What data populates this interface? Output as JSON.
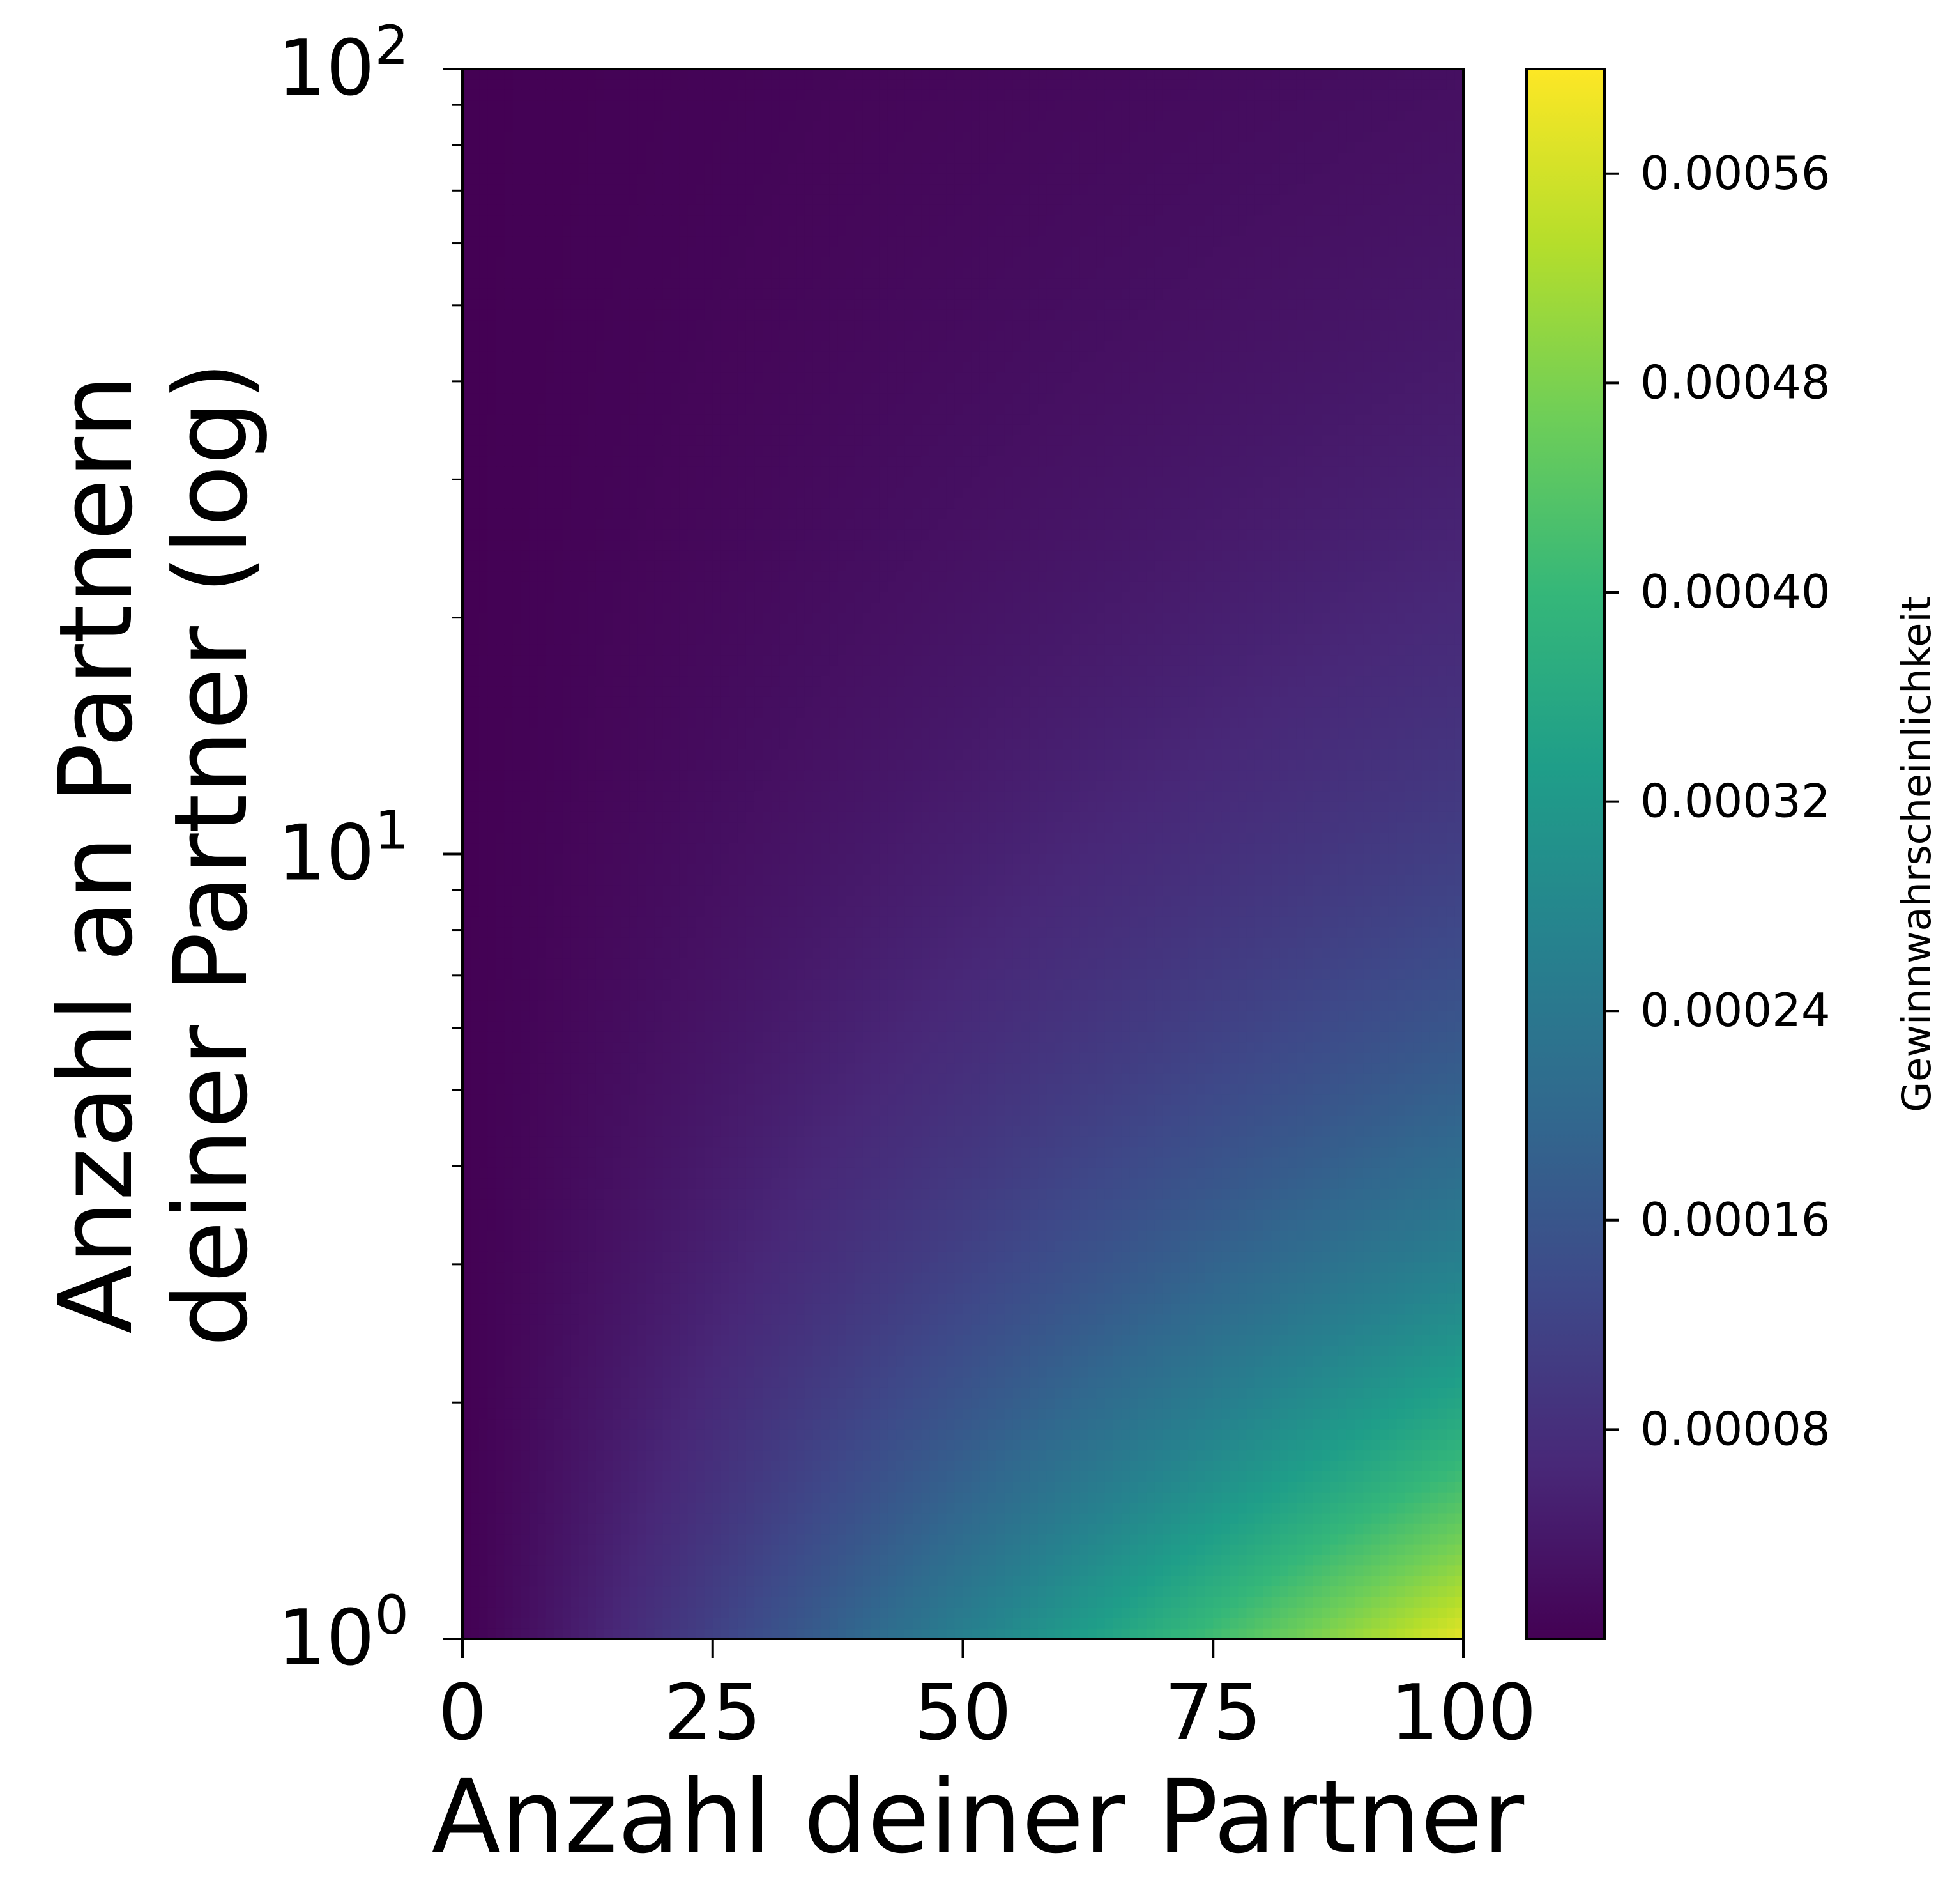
{
  "chart_data": {
    "type": "heatmap",
    "xlabel": "Anzahl deiner Partner",
    "ylabel_lines": [
      "Anzahl an Partnern",
      "deiner Partner (log)"
    ],
    "colorbar_label": "Gewinnwahrscheinlichkeit",
    "xlim": [
      0,
      100
    ],
    "ylim": [
      1,
      100
    ],
    "y_scale": "log",
    "x_ticks": [
      0,
      25,
      50,
      75,
      100
    ],
    "x_tick_labels": [
      "0",
      "25",
      "50",
      "75",
      "100"
    ],
    "y_ticks": [
      1,
      10,
      100
    ],
    "y_tick_labels": [
      {
        "base": "10",
        "exp": "0"
      },
      {
        "base": "10",
        "exp": "1"
      },
      {
        "base": "10",
        "exp": "2"
      }
    ],
    "colorbar_range": [
      0.0,
      0.0006
    ],
    "colorbar_ticks": [
      8e-05,
      0.00016,
      0.00024,
      0.00032,
      0.0004,
      0.00048,
      0.00056
    ],
    "colorbar_tick_labels": [
      "0.00008",
      "0.00016",
      "0.00024",
      "0.00032",
      "0.00040",
      "0.00048",
      "0.00056"
    ],
    "colormap": "viridis",
    "colormap_stops": [
      "#440154",
      "#482878",
      "#3e4989",
      "#31688e",
      "#26828e",
      "#1f9e89",
      "#35b779",
      "#6ece58",
      "#b5de2b",
      "#fde725"
    ],
    "trend": "value increases with x and decreases with y; maximum (~0.0006) at x=100, y=1; minimum near x=0 and at high y",
    "grid": false
  }
}
